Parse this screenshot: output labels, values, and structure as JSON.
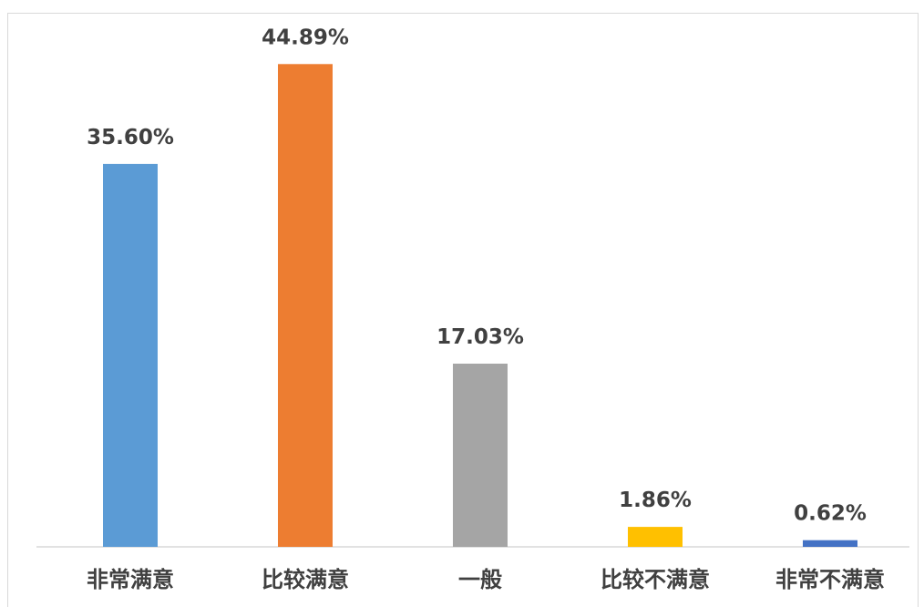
{
  "chart_data": {
    "type": "bar",
    "categories": [
      "非常满意",
      "比较满意",
      "一般",
      "比较不满意",
      "非常不满意"
    ],
    "values": [
      35.6,
      44.89,
      17.03,
      1.86,
      0.62
    ],
    "value_labels": [
      "35.60%",
      "44.89%",
      "17.03%",
      "1.86%",
      "0.62%"
    ],
    "colors": [
      "#5b9bd5",
      "#ed7d31",
      "#a5a5a5",
      "#ffc000",
      "#4472c4"
    ],
    "unit": "%",
    "title": "",
    "xlabel": "",
    "ylabel": "",
    "ylim": [
      0,
      50
    ],
    "grid": false,
    "legend": "none"
  }
}
